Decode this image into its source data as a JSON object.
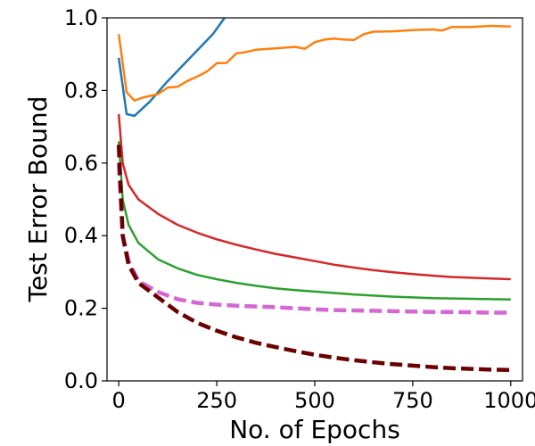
{
  "chart_data": {
    "type": "line",
    "title": "",
    "xlabel": "No. of Epochs",
    "ylabel": "Test Error Bound",
    "xlim": [
      -30,
      1030
    ],
    "ylim": [
      0.0,
      1.0
    ],
    "xticks": [
      0,
      250,
      500,
      750,
      1000
    ],
    "xtick_labels": [
      "0",
      "250",
      "500",
      "750",
      "1000"
    ],
    "yticks": [
      0.0,
      0.2,
      0.4,
      0.6,
      0.8,
      1.0
    ],
    "ytick_labels": [
      "0.0",
      "0.2",
      "0.4",
      "0.6",
      "0.8",
      "1.0"
    ],
    "grid": false,
    "legend": "none",
    "series": [
      {
        "color": "#1f77b4",
        "style": "solid",
        "points": [
          [
            0,
            0.89
          ],
          [
            20,
            0.735
          ],
          [
            40,
            0.73
          ],
          [
            80,
            0.77
          ],
          [
            120,
            0.82
          ],
          [
            160,
            0.865
          ],
          [
            200,
            0.91
          ],
          [
            240,
            0.955
          ],
          [
            270,
            1.0
          ]
        ]
      },
      {
        "color": "#ff7f0e",
        "style": "solid",
        "points": [
          [
            0,
            0.955
          ],
          [
            20,
            0.795
          ],
          [
            40,
            0.772
          ],
          [
            60,
            0.78
          ],
          [
            100,
            0.79
          ],
          [
            125,
            0.808
          ],
          [
            150,
            0.81
          ],
          [
            175,
            0.826
          ],
          [
            200,
            0.838
          ],
          [
            225,
            0.852
          ],
          [
            250,
            0.875
          ],
          [
            275,
            0.876
          ],
          [
            300,
            0.902
          ],
          [
            325,
            0.906
          ],
          [
            350,
            0.912
          ],
          [
            375,
            0.914
          ],
          [
            400,
            0.916
          ],
          [
            425,
            0.918
          ],
          [
            450,
            0.92
          ],
          [
            475,
            0.915
          ],
          [
            500,
            0.933
          ],
          [
            525,
            0.94
          ],
          [
            550,
            0.943
          ],
          [
            575,
            0.94
          ],
          [
            600,
            0.939
          ],
          [
            625,
            0.955
          ],
          [
            650,
            0.962
          ],
          [
            700,
            0.963
          ],
          [
            750,
            0.966
          ],
          [
            800,
            0.968
          ],
          [
            825,
            0.965
          ],
          [
            850,
            0.975
          ],
          [
            900,
            0.975
          ],
          [
            950,
            0.978
          ],
          [
            1000,
            0.976
          ]
        ]
      },
      {
        "color": "#d62728",
        "style": "solid",
        "points": [
          [
            0,
            0.735
          ],
          [
            10,
            0.6
          ],
          [
            25,
            0.54
          ],
          [
            50,
            0.5
          ],
          [
            100,
            0.46
          ],
          [
            150,
            0.43
          ],
          [
            200,
            0.408
          ],
          [
            250,
            0.39
          ],
          [
            300,
            0.375
          ],
          [
            350,
            0.362
          ],
          [
            400,
            0.35
          ],
          [
            450,
            0.34
          ],
          [
            500,
            0.33
          ],
          [
            550,
            0.32
          ],
          [
            600,
            0.312
          ],
          [
            650,
            0.305
          ],
          [
            700,
            0.299
          ],
          [
            750,
            0.294
          ],
          [
            800,
            0.29
          ],
          [
            850,
            0.286
          ],
          [
            900,
            0.284
          ],
          [
            950,
            0.282
          ],
          [
            1000,
            0.28
          ]
        ]
      },
      {
        "color": "#2ca02c",
        "style": "solid",
        "points": [
          [
            0,
            0.66
          ],
          [
            10,
            0.5
          ],
          [
            25,
            0.43
          ],
          [
            50,
            0.38
          ],
          [
            100,
            0.335
          ],
          [
            150,
            0.31
          ],
          [
            200,
            0.292
          ],
          [
            250,
            0.28
          ],
          [
            300,
            0.27
          ],
          [
            350,
            0.262
          ],
          [
            400,
            0.255
          ],
          [
            450,
            0.25
          ],
          [
            500,
            0.246
          ],
          [
            550,
            0.242
          ],
          [
            600,
            0.238
          ],
          [
            650,
            0.235
          ],
          [
            700,
            0.232
          ],
          [
            750,
            0.23
          ],
          [
            800,
            0.228
          ],
          [
            850,
            0.227
          ],
          [
            900,
            0.226
          ],
          [
            950,
            0.225
          ],
          [
            1000,
            0.224
          ]
        ]
      },
      {
        "color": "#d467d4",
        "style": "dashed",
        "points": [
          [
            0,
            0.6
          ],
          [
            10,
            0.4
          ],
          [
            25,
            0.33
          ],
          [
            50,
            0.275
          ],
          [
            100,
            0.245
          ],
          [
            150,
            0.225
          ],
          [
            200,
            0.215
          ],
          [
            250,
            0.21
          ],
          [
            300,
            0.207
          ],
          [
            350,
            0.205
          ],
          [
            400,
            0.203
          ],
          [
            450,
            0.2
          ],
          [
            500,
            0.197
          ],
          [
            550,
            0.195
          ],
          [
            600,
            0.194
          ],
          [
            650,
            0.193
          ],
          [
            700,
            0.192
          ],
          [
            750,
            0.191
          ],
          [
            800,
            0.19
          ],
          [
            850,
            0.19
          ],
          [
            900,
            0.189
          ],
          [
            950,
            0.188
          ],
          [
            1000,
            0.188
          ]
        ]
      },
      {
        "color": "#6b0000",
        "style": "dashed",
        "points": [
          [
            0,
            0.65
          ],
          [
            10,
            0.4
          ],
          [
            25,
            0.32
          ],
          [
            50,
            0.27
          ],
          [
            100,
            0.23
          ],
          [
            150,
            0.19
          ],
          [
            200,
            0.16
          ],
          [
            250,
            0.138
          ],
          [
            300,
            0.12
          ],
          [
            350,
            0.105
          ],
          [
            400,
            0.093
          ],
          [
            450,
            0.082
          ],
          [
            500,
            0.072
          ],
          [
            550,
            0.064
          ],
          [
            600,
            0.057
          ],
          [
            650,
            0.051
          ],
          [
            700,
            0.046
          ],
          [
            750,
            0.042
          ],
          [
            800,
            0.038
          ],
          [
            850,
            0.035
          ],
          [
            900,
            0.033
          ],
          [
            950,
            0.031
          ],
          [
            1000,
            0.03
          ]
        ]
      }
    ]
  }
}
